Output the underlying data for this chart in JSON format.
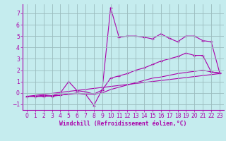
{
  "xlabel": "Windchill (Refroidissement éolien,°C)",
  "bg_color": "#c5ecee",
  "line_color": "#aa00aa",
  "grid_color": "#9bbcbe",
  "xlim": [
    -0.5,
    23.5
  ],
  "ylim": [
    -1.5,
    7.8
  ],
  "yticks": [
    -1,
    0,
    1,
    2,
    3,
    4,
    5,
    6,
    7
  ],
  "xticks": [
    0,
    1,
    2,
    3,
    4,
    5,
    6,
    7,
    8,
    9,
    10,
    11,
    12,
    13,
    14,
    15,
    16,
    17,
    18,
    19,
    20,
    21,
    22,
    23
  ],
  "line1_x": [
    0,
    1,
    2,
    3,
    4,
    5,
    6,
    7,
    8,
    9,
    10,
    11,
    12,
    13,
    14,
    15,
    16,
    17,
    18,
    19,
    20,
    21,
    22,
    23
  ],
  "line1_y": [
    -0.3,
    -0.3,
    -0.2,
    -0.3,
    -0.2,
    -0.1,
    0.0,
    -0.1,
    -1.1,
    0.3,
    7.5,
    4.9,
    5.0,
    5.0,
    4.9,
    4.75,
    5.2,
    4.8,
    4.5,
    5.0,
    5.0,
    4.6,
    4.5,
    1.8
  ],
  "line2_x": [
    0,
    1,
    2,
    3,
    4,
    5,
    6,
    7,
    8,
    9,
    10,
    11,
    12,
    13,
    14,
    15,
    16,
    17,
    18,
    19,
    20,
    21,
    22,
    23
  ],
  "line2_y": [
    -0.3,
    -0.3,
    -0.3,
    -0.25,
    0.0,
    1.0,
    0.2,
    0.1,
    -0.1,
    0.25,
    1.3,
    1.5,
    1.7,
    2.0,
    2.2,
    2.5,
    2.8,
    3.0,
    3.2,
    3.5,
    3.3,
    3.3,
    1.85,
    1.75
  ],
  "line3_x": [
    0,
    1,
    2,
    3,
    4,
    5,
    6,
    7,
    8,
    9,
    10,
    11,
    12,
    13,
    14,
    15,
    16,
    17,
    18,
    19,
    20,
    21,
    22,
    23
  ],
  "line3_y": [
    -0.3,
    -0.3,
    -0.3,
    -0.25,
    -0.2,
    -0.1,
    -0.05,
    -0.1,
    -0.1,
    0.0,
    0.3,
    0.5,
    0.7,
    0.9,
    1.1,
    1.3,
    1.4,
    1.55,
    1.7,
    1.8,
    1.9,
    2.0,
    1.85,
    1.75
  ],
  "line4_x": [
    0,
    23
  ],
  "line4_y": [
    -0.3,
    1.7
  ]
}
